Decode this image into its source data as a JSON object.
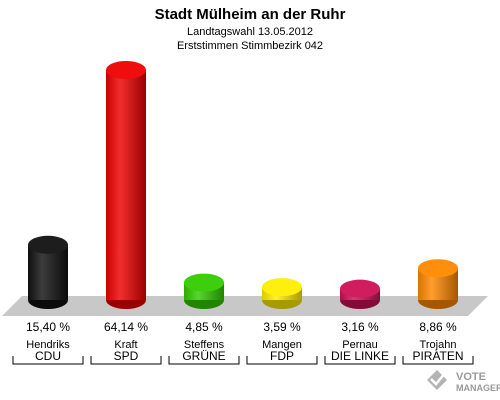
{
  "chart_data": {
    "type": "bar",
    "title": "Stadt Mülheim an der Ruhr",
    "subtitle_lines": [
      "Landtagswahl 13.05.2012",
      "Erststimmen Stimmbezirk 042"
    ],
    "categories": [
      "Hendriks",
      "Kraft",
      "Steffens",
      "Mangen",
      "Pernau",
      "Trojahn"
    ],
    "parties": [
      "CDU",
      "SPD",
      "GRÜNE",
      "FDP",
      "DIE LINKE",
      "PIRATEN"
    ],
    "values": [
      15.4,
      64.14,
      4.85,
      3.59,
      3.16,
      8.86
    ],
    "value_labels": [
      "15,40 %",
      "64,14 %",
      "4,85 %",
      "3,59 %",
      "3,16 %",
      "8,86 %"
    ],
    "colors": [
      "#111111",
      "#ee0000",
      "#33cc00",
      "#ffee00",
      "#cc1155",
      "#ff8800"
    ],
    "grid": false,
    "legend": "none"
  },
  "watermark": {
    "line1": "VOTE",
    "line2": "MANAGER"
  }
}
